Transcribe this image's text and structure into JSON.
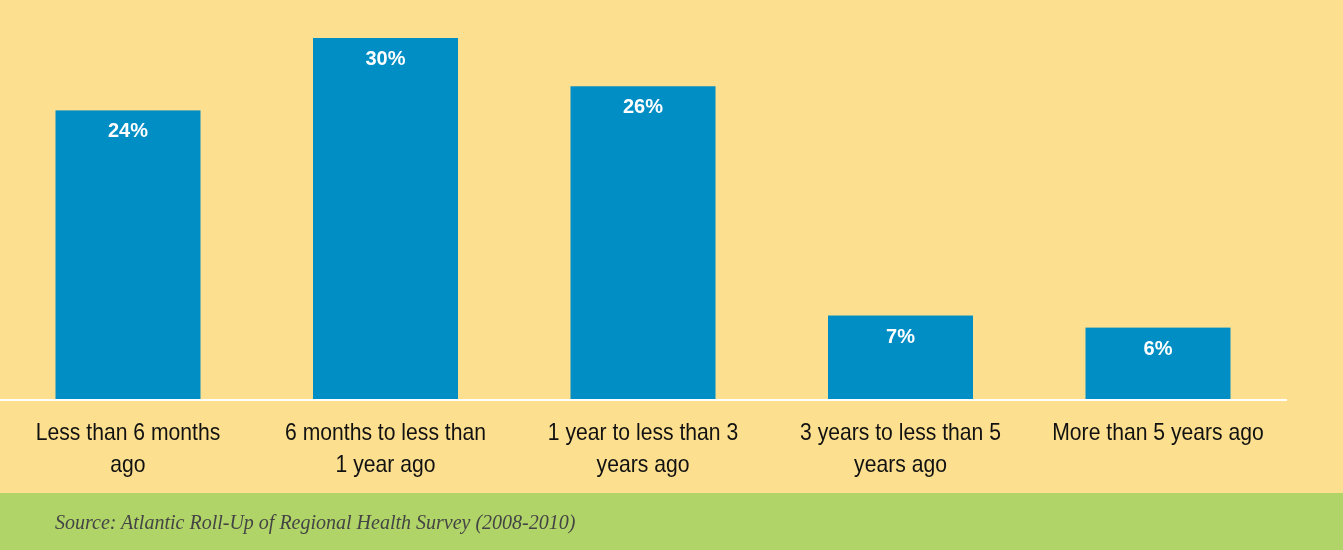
{
  "chart_data": {
    "type": "bar",
    "categories": [
      "Less than 6 months ago",
      "6 months to less than 1 year ago",
      "1 year to less than 3 years ago",
      "3 years to less than 5 years ago",
      "More than 5 years ago"
    ],
    "values": [
      24,
      30,
      26,
      7,
      6
    ],
    "value_labels": [
      "24%",
      "30%",
      "26%",
      "7%",
      "6%"
    ],
    "color": "#008ec4",
    "annotations": [
      "Source: Atlantic Roll-Up of Regional Health Survey (2008-2010)"
    ]
  }
}
